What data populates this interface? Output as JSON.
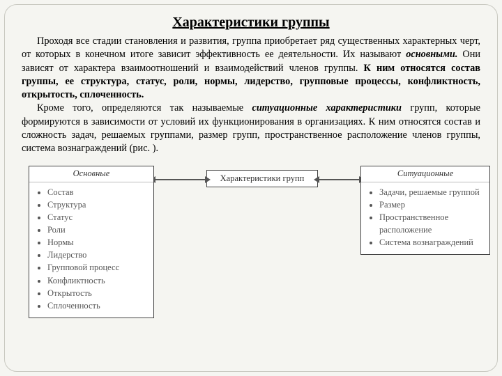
{
  "title": "Характеристики группы",
  "paragraphs": {
    "p1_a": "Проходя все стадии становления и развития, группа приобретает ряд существенных характерных черт, от которых в конечном итоге зависит эффективность ее деятельности. Их называют ",
    "p1_b": "основными.",
    "p1_c": " Они зависят от характера взаимоотношений и взаимодействий членов группы. ",
    "p1_d": "К ним относятся состав группы, ее структура, статус, роли, нормы, лидерство, групповые процессы, конфликтность, открытость, сплоченность.",
    "p2_a": "Кроме того, определяются так называемые ",
    "p2_b": "ситуационные характеристики",
    "p2_c": " групп, которые формируются в зависимости от условий их функционирования в организациях. К ним относятся состав и сложность задач, решаемых группами, размер групп, пространственное расположение членов группы, система вознаграждений (рис. )."
  },
  "diagram": {
    "center_label": "Характеристики групп",
    "left": {
      "heading": "Основные",
      "items": [
        "Состав",
        "Структура",
        "Статус",
        "Роли",
        "Нормы",
        "Лидерство",
        "Групповой процесс",
        "Конфликтность",
        "Открытость",
        "Сплоченность"
      ]
    },
    "right": {
      "heading": "Ситуационные",
      "items": [
        "Задачи, решаемые группой",
        "Размер",
        "Пространственное расположение",
        "Система вознаграждений"
      ]
    },
    "style": {
      "box_border_color": "#444444",
      "box_bg": "#ffffff",
      "arrow_color": "#555555",
      "text_color": "#333333",
      "font_size_box": 12.5,
      "font_size_title": 20,
      "font_size_body": 14.3
    }
  }
}
